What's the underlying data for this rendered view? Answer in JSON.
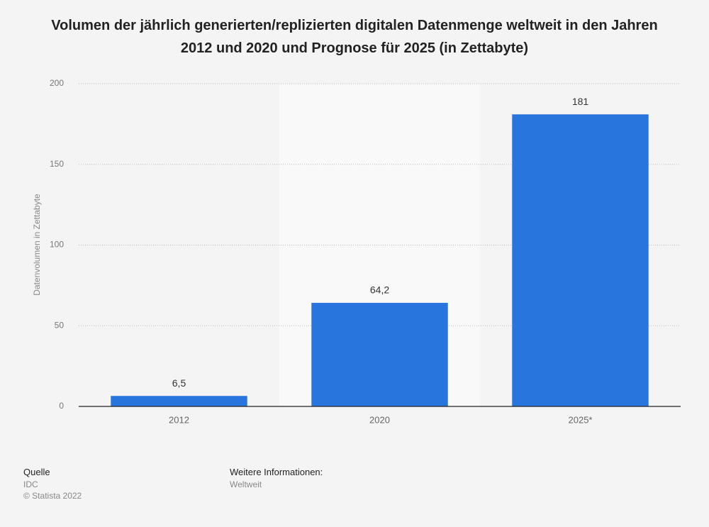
{
  "chart_data": {
    "type": "bar",
    "title": "Volumen der jährlich generierten/replizierten digitalen Datenmenge weltweit in den Jahren 2012 und 2020 und Prognose für 2025 (in Zettabyte)",
    "y_label": "Datenvolumen in Zettabyte",
    "categories": [
      "2012",
      "2020",
      "2025*"
    ],
    "values": [
      6.5,
      64.2,
      181
    ],
    "value_labels": [
      "6,5",
      "64,2",
      "181"
    ],
    "color": "#2876dd",
    "ylim": [
      0,
      200
    ],
    "yticks": [
      0,
      50,
      100,
      150,
      200
    ],
    "grid": true
  },
  "footer": {
    "source_title": "Quelle",
    "source": "IDC",
    "copyright": "© Statista 2022",
    "info_title": "Weitere Informationen:",
    "info": "Weltweit"
  }
}
